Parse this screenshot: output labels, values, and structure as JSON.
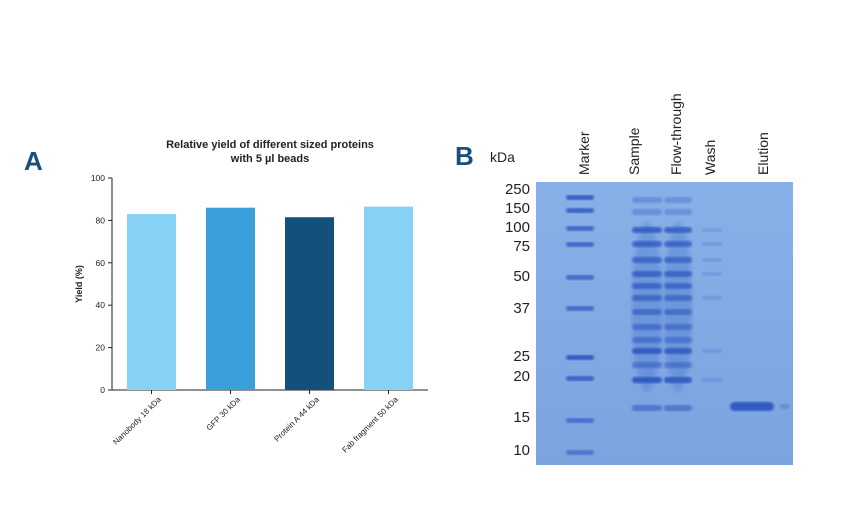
{
  "panels": {
    "a": "A",
    "b": "B"
  },
  "chart_data": {
    "type": "bar",
    "title_line1": "Relative yield of different sized proteins",
    "title_line2": "with 5 µl beads",
    "ylabel": "Yield (%)",
    "xlabel": "",
    "ylim": [
      0,
      100
    ],
    "yticks": [
      0,
      20,
      40,
      60,
      80,
      100
    ],
    "categories": [
      "Nanobody 18 kDa",
      "GFP 30 kDa",
      "Protein A 44 kDa",
      "Fab fragment 50 kDa"
    ],
    "values": [
      83,
      86,
      81.5,
      86.5
    ],
    "colors": [
      "#87d2f4",
      "#3aa0dc",
      "#13507c",
      "#87d2f4"
    ],
    "grid": false
  },
  "gel": {
    "unit_label": "kDa",
    "lanes": [
      "Marker",
      "Sample",
      "Flow-through",
      "Wash",
      "Elution"
    ],
    "marker_weights": [
      "250",
      "150",
      "100",
      "75",
      "50",
      "37",
      "25",
      "20",
      "15",
      "10"
    ],
    "background_color": "#7aa4e2",
    "band_color": "#2f58c0"
  }
}
